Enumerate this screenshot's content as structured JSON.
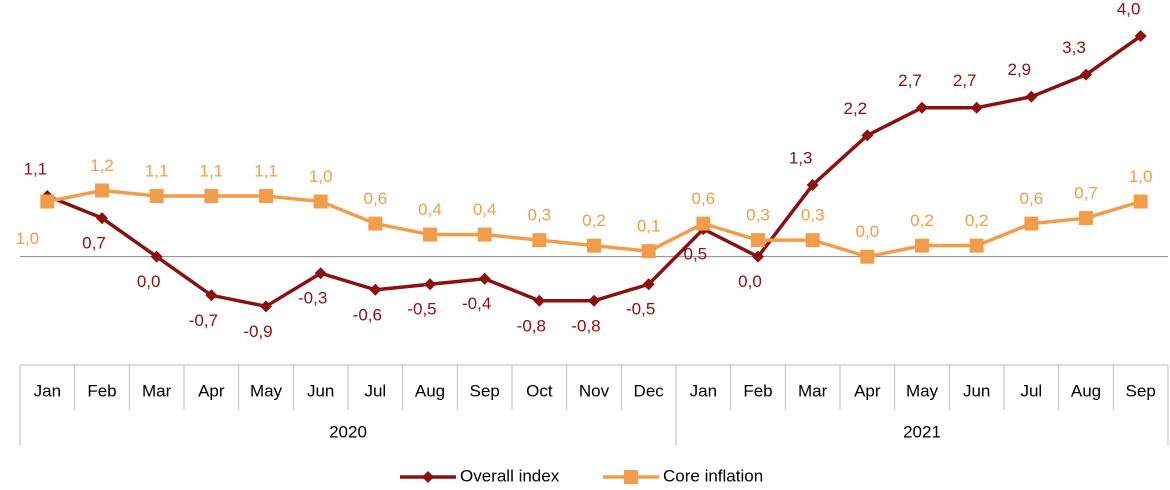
{
  "chart_data": {
    "type": "line",
    "category_groups": [
      {
        "name": "2020",
        "categories": [
          "Jan",
          "Feb",
          "Mar",
          "Apr",
          "May",
          "Jun",
          "Jul",
          "Aug",
          "Sep",
          "Oct",
          "Nov",
          "Dec"
        ]
      },
      {
        "name": "2021",
        "categories": [
          "Jan",
          "Feb",
          "Mar",
          "Apr",
          "May",
          "Jun",
          "Jul",
          "Aug",
          "Sep"
        ]
      }
    ],
    "series": [
      {
        "name": "Overall index",
        "color": "#8b1010",
        "marker": "diamond",
        "values": [
          1.1,
          0.7,
          0.0,
          -0.7,
          -0.9,
          -0.3,
          -0.6,
          -0.5,
          -0.4,
          -0.8,
          -0.8,
          -0.5,
          0.5,
          0.0,
          1.3,
          2.2,
          2.7,
          2.7,
          2.9,
          3.3,
          4.0
        ],
        "value_labels": [
          "1,1",
          "0,7",
          "0,0",
          "-0,7",
          "-0,9",
          "-0,3",
          "-0,6",
          "-0,5",
          "-0,4",
          "-0,8",
          "-0,8",
          "-0,5",
          "0,5",
          "0,0",
          "1,3",
          "2,2",
          "2,7",
          "2,7",
          "2,9",
          "3,3",
          "4,0"
        ]
      },
      {
        "name": "Core inflation",
        "color": "#f29d4b",
        "marker": "square",
        "values": [
          1.0,
          1.2,
          1.1,
          1.1,
          1.1,
          1.0,
          0.6,
          0.4,
          0.4,
          0.3,
          0.2,
          0.1,
          0.6,
          0.3,
          0.3,
          0.0,
          0.2,
          0.2,
          0.6,
          0.7,
          1.0
        ],
        "value_labels": [
          "1,0",
          "1,2",
          "1,1",
          "1,1",
          "1,1",
          "1,0",
          "0,6",
          "0,4",
          "0,4",
          "0,3",
          "0,2",
          "0,1",
          "0,6",
          "0,3",
          "0,3",
          "0,0",
          "0,2",
          "0,2",
          "0,6",
          "0,7",
          "1,0"
        ]
      }
    ],
    "ylim": [
      -2,
      4.2
    ],
    "legend": "bottom"
  }
}
